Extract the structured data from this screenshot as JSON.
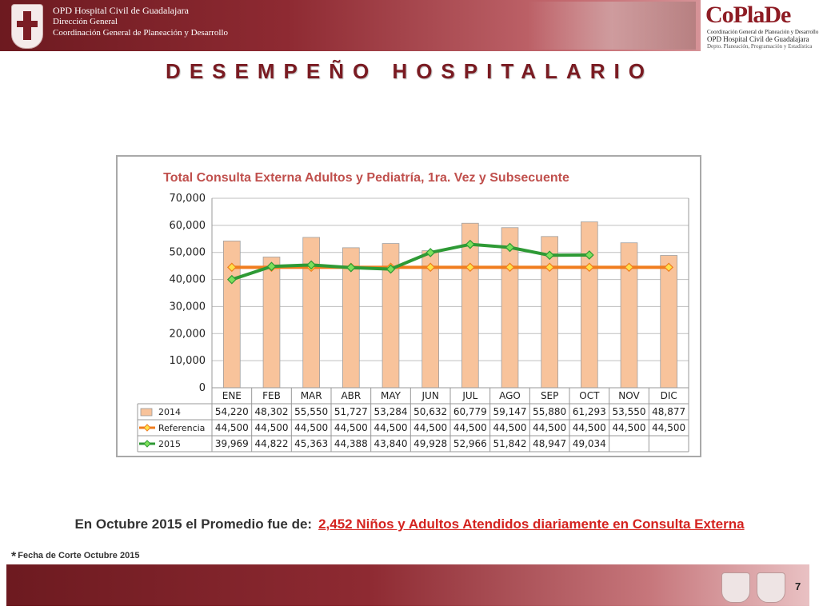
{
  "header": {
    "line1": "OPD Hospital Civil de Guadalajara",
    "line2": "Dirección General",
    "line3": "Coordinación General de Planeación y Desarrollo",
    "coplade_name": "CoPlaDe",
    "coplade_sub1": "Coordinación General de Planeación y Desarrollo",
    "coplade_sub2": "OPD Hospital Civil de Guadalajara",
    "coplade_sub3": "Depto. Planeación, Programación y Estadística"
  },
  "page_title": "DESEMPEÑO HOSPITALARIO",
  "chart_data": {
    "type": "bar",
    "title": "Total Consulta Externa Adultos y Pediatría, 1ra. Vez y Subsecuente",
    "categories": [
      "ENE",
      "FEB",
      "MAR",
      "ABR",
      "MAY",
      "JUN",
      "JUL",
      "AGO",
      "SEP",
      "OCT",
      "NOV",
      "DIC"
    ],
    "series": [
      {
        "name": "2014",
        "kind": "bar",
        "color": "#f8c39b",
        "values": [
          54220,
          48302,
          55550,
          51727,
          53284,
          50632,
          60779,
          59147,
          55880,
          61293,
          53550,
          48877
        ]
      },
      {
        "name": "Referencia",
        "kind": "line",
        "color": "#f07d1f",
        "values": [
          44500,
          44500,
          44500,
          44500,
          44500,
          44500,
          44500,
          44500,
          44500,
          44500,
          44500,
          44500
        ]
      },
      {
        "name": "2015",
        "kind": "line",
        "color": "#2e9a35",
        "values": [
          39969,
          44822,
          45363,
          44388,
          43840,
          49928,
          52966,
          51842,
          48947,
          49034,
          null,
          null
        ]
      }
    ],
    "ylim": [
      0,
      70000
    ],
    "yticks": [
      0,
      10000,
      20000,
      30000,
      40000,
      50000,
      60000,
      70000
    ],
    "grid": true,
    "legend": "data-table"
  },
  "summary": {
    "prefix": "En Octubre 2015 el Promedio fue de:",
    "highlight": "2,452  Niños y Adultos Atendidos diariamente en Consulta Externa"
  },
  "footnote": {
    "star": "*",
    "text": "Fecha de Corte Octubre 2015"
  },
  "page_number": "7"
}
